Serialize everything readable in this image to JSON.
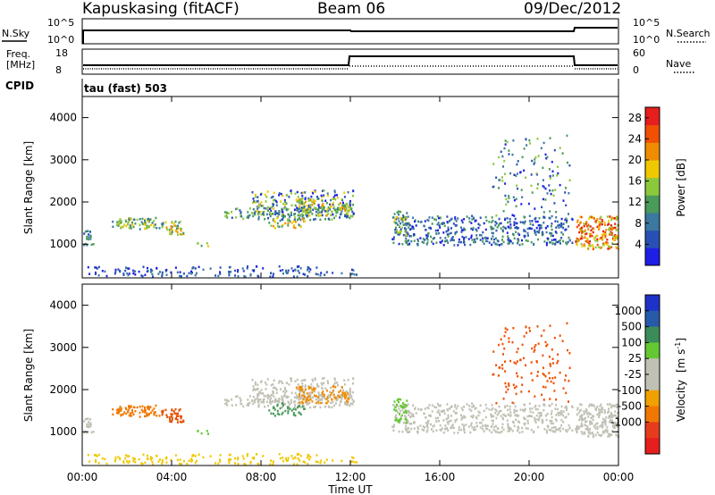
{
  "header": {
    "station": "Kapuskasing (fitACF)",
    "beam": "Beam 06",
    "date": "09/Dec/2012"
  },
  "top_panels": {
    "nsky_label": "N.Sky",
    "nsky_ticks": [
      "10^5",
      "10^0"
    ],
    "nsearch_label": "N.Search",
    "nsearch_ticks": [
      "10^5",
      "10^0"
    ],
    "freq_label_line1": "Freq.",
    "freq_label_line2": "[MHz]",
    "freq_ticks": [
      "18",
      "8"
    ],
    "nave_label": "Nave",
    "nave_ticks": [
      "60",
      "0"
    ],
    "cpid_label": "CPID",
    "cpid_value": "tau (fast) 503"
  },
  "colors": {
    "power_scale": [
      "#1e1ee6",
      "#2850b4",
      "#3c78a0",
      "#4a9a5a",
      "#8cc83c",
      "#f0c800",
      "#f08c00",
      "#f05000",
      "#e61e1e"
    ],
    "velocity_scale": [
      "#1e32c8",
      "#285aaa",
      "#3c8c5a",
      "#64c832",
      "#c0c0b4",
      "#c0c0b4",
      "#f0a000",
      "#f07800",
      "#e63c1e",
      "#e61e1e"
    ],
    "ground_scatter": "#c0c0b4"
  },
  "chart_data": [
    {
      "type": "heatmap",
      "name": "power",
      "ylabel": "Slant Range [km]",
      "xlim": [
        "00:00",
        "00:00"
      ],
      "ylim": [
        200,
        4500
      ],
      "yticks": [
        "1000",
        "2000",
        "3000",
        "4000"
      ],
      "colorbar_label": "Power [dB]",
      "colorbar_ticks": [
        "4",
        "8",
        "12",
        "16",
        "20",
        "24",
        "28"
      ],
      "colorbar_range": [
        0,
        30
      ]
    },
    {
      "type": "heatmap",
      "name": "velocity",
      "ylabel": "Slant Range [km]",
      "xlabel": "Time UT",
      "xticks": [
        "00:00",
        "04:00",
        "08:00",
        "12:00",
        "16:00",
        "20:00",
        "00:00"
      ],
      "ylim": [
        200,
        4500
      ],
      "yticks": [
        "1000",
        "2000",
        "3000",
        "4000"
      ],
      "colorbar_label_main": "Velocity",
      "colorbar_label_unit": "[m s",
      "colorbar_label_exp": "-1",
      "colorbar_label_close": "]",
      "colorbar_ticks": [
        "1000",
        "500",
        "100",
        "25",
        "-25",
        "-100",
        "-500",
        "-1000"
      ]
    }
  ]
}
